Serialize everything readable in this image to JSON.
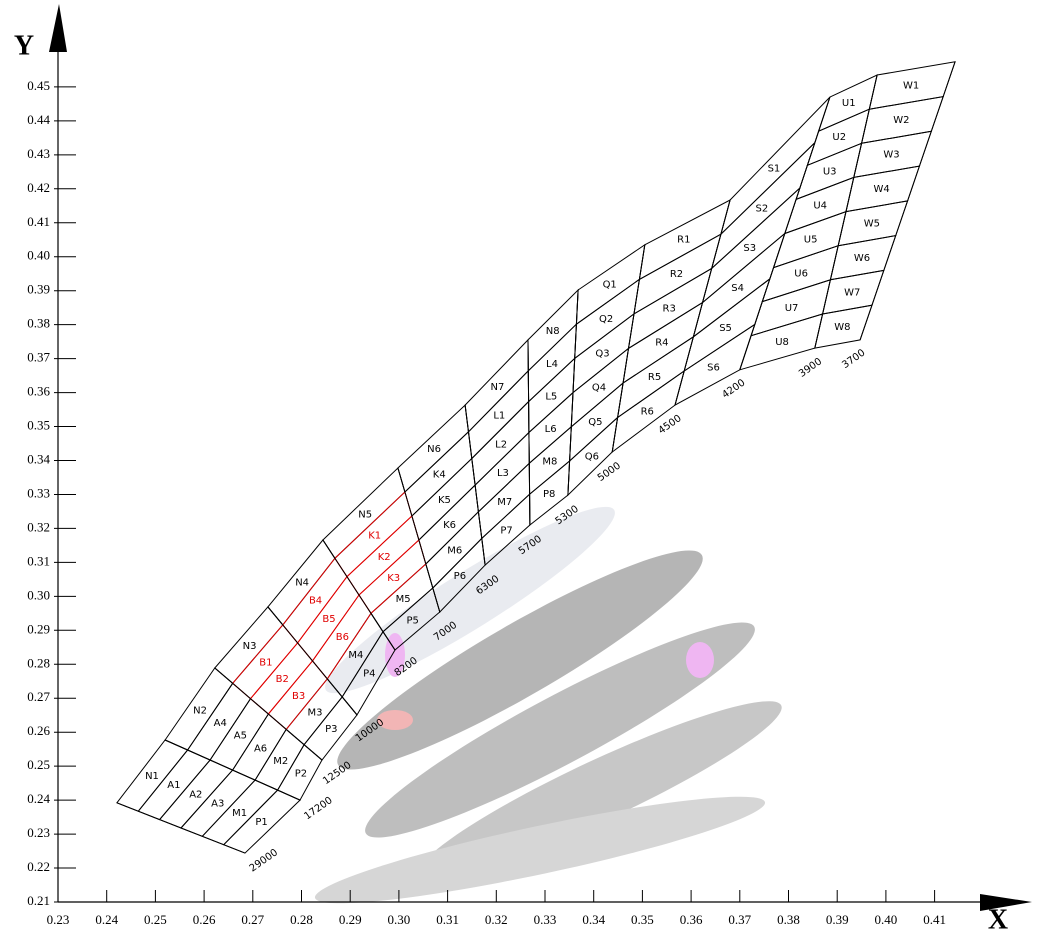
{
  "chart_data": {
    "type": "chromaticity-bins",
    "x_label": "X",
    "y_label": "Y",
    "xlim": [
      0.23,
      0.43
    ],
    "ylim": [
      0.21,
      0.47
    ],
    "xticks": [
      0.23,
      0.24,
      0.25,
      0.26,
      0.27,
      0.28,
      0.29,
      {
        "value": 0.3,
        "label": "0.30"
      },
      0.31,
      0.32,
      0.33,
      0.34,
      0.35,
      0.36,
      0.37,
      0.38,
      0.39,
      {
        "value": 0.4,
        "label": "0.40"
      },
      0.41
    ],
    "yticks": [
      0.21,
      0.22,
      0.23,
      0.24,
      0.25,
      0.26,
      0.27,
      0.28,
      0.29,
      {
        "value": 0.3,
        "label": "0.30"
      },
      0.31,
      0.32,
      0.33,
      0.34,
      0.35,
      0.36,
      0.37,
      0.38,
      0.39,
      {
        "value": 0.4,
        "label": "0.40"
      },
      0.41,
      0.42,
      0.43,
      0.44,
      0.45
    ],
    "line_color": "#000000",
    "isotherms": [
      {
        "label": "29000",
        "top": [
          0.2421,
          0.2392
        ],
        "bottom": [
          0.2684,
          0.2244
        ]
      },
      {
        "label": "17200",
        "top": [
          0.252,
          0.2577
        ],
        "bottom": [
          0.2797,
          0.24
        ]
      },
      {
        "label": "12500",
        "top": [
          0.2622,
          0.2789
        ],
        "bottom": [
          0.2842,
          0.2518
        ]
      },
      {
        "label": "10000",
        "top": [
          0.2731,
          0.2969
        ],
        "bottom": [
          0.2914,
          0.2651
        ]
      },
      {
        "label": "8200",
        "top": [
          0.2844,
          0.3166
        ],
        "bottom": [
          0.2992,
          0.2842
        ]
      },
      {
        "label": "7000",
        "top": [
          0.2998,
          0.3378
        ],
        "bottom": [
          0.3084,
          0.2954
        ]
      },
      {
        "label": "6300",
        "top": [
          0.3136,
          0.3563
        ],
        "bottom": [
          0.3177,
          0.3092
        ]
      },
      {
        "label": "5700",
        "top": [
          0.3265,
          0.3755
        ],
        "bottom": [
          0.3269,
          0.321
        ]
      },
      {
        "label": "5300",
        "top": [
          0.3368,
          0.3902
        ],
        "bottom": [
          0.3347,
          0.3298
        ]
      },
      {
        "label": "5000",
        "top": [
          0.3505,
          0.4035
        ],
        "bottom": [
          0.3438,
          0.3425
        ]
      },
      {
        "label": "4500",
        "top": [
          0.368,
          0.4167
        ],
        "bottom": [
          0.3567,
          0.3563
        ]
      },
      {
        "label": "4200",
        "top": [
          0.3885,
          0.447
        ],
        "bottom": [
          0.37,
          0.3667
        ]
      },
      {
        "label": "3900",
        "top": [
          0.3982,
          0.4535
        ],
        "bottom": [
          0.3854,
          0.3731
        ]
      },
      {
        "label": "3700",
        "top": [
          0.4142,
          0.4574
        ],
        "bottom": [
          0.3947,
          0.3755
        ]
      }
    ],
    "columns": [
      {
        "labels": [
          "N1",
          "A1",
          "A2",
          "A3",
          "M1",
          "P1"
        ],
        "colors": [
          "#000000",
          "#000000",
          "#000000",
          "#000000",
          "#000000",
          "#000000"
        ]
      },
      {
        "labels": [
          "N2",
          "A4",
          "A5",
          "A6",
          "M2",
          "P2"
        ],
        "colors": [
          "#000000",
          "#000000",
          "#000000",
          "#000000",
          "#000000",
          "#000000"
        ]
      },
      {
        "labels": [
          "N3",
          "B1",
          "B2",
          "B3",
          "M3",
          "P3"
        ],
        "colors": [
          "#000000",
          "#e00000",
          "#e00000",
          "#e00000",
          "#000000",
          "#000000"
        ]
      },
      {
        "labels": [
          "N4",
          "B4",
          "B5",
          "B6",
          "M4",
          "P4"
        ],
        "colors": [
          "#000000",
          "#e00000",
          "#e00000",
          "#e00000",
          "#000000",
          "#000000"
        ]
      },
      {
        "labels": [
          "N5",
          "K1",
          "K2",
          "K3",
          "M5",
          "P5"
        ],
        "colors": [
          "#000000",
          "#e00000",
          "#e00000",
          "#e00000",
          "#000000",
          "#000000"
        ]
      },
      {
        "labels": [
          "N6",
          "K4",
          "K5",
          "K6",
          "M6",
          "P6"
        ],
        "colors": [
          "#000000",
          "#000000",
          "#000000",
          "#000000",
          "#000000",
          "#000000"
        ]
      },
      {
        "labels": [
          "N7",
          "L1",
          "L2",
          "L3",
          "M7",
          "P7"
        ],
        "colors": [
          "#000000",
          "#000000",
          "#000000",
          "#000000",
          "#000000",
          "#000000"
        ]
      },
      {
        "labels": [
          "N8",
          "L4",
          "L5",
          "L6",
          "M8",
          "P8"
        ],
        "colors": [
          "#000000",
          "#000000",
          "#000000",
          "#000000",
          "#000000",
          "#000000"
        ]
      },
      {
        "labels": [
          "Q1",
          "Q2",
          "Q3",
          "Q4",
          "Q5",
          "Q6"
        ],
        "colors": [
          "#000000",
          "#000000",
          "#000000",
          "#000000",
          "#000000",
          "#000000"
        ]
      },
      {
        "labels": [
          "R1",
          "R2",
          "R3",
          "R4",
          "R5",
          "R6"
        ],
        "colors": [
          "#000000",
          "#000000",
          "#000000",
          "#000000",
          "#000000",
          "#000000"
        ]
      },
      {
        "labels": [
          "S1",
          "S2",
          "S3",
          "S4",
          "S5",
          "S6"
        ],
        "colors": [
          "#000000",
          "#000000",
          "#000000",
          "#000000",
          "#000000",
          "#000000"
        ]
      },
      {
        "labels": [
          "U1",
          "U2",
          "U3",
          "U4",
          "U5",
          "U6",
          "U7",
          "U8"
        ],
        "colors": [
          "#000000",
          "#000000",
          "#000000",
          "#000000",
          "#000000",
          "#000000",
          "#000000",
          "#000000"
        ]
      },
      {
        "labels": [
          "W1",
          "W2",
          "W3",
          "W4",
          "W5",
          "W6",
          "W7",
          "W8"
        ],
        "colors": [
          "#000000",
          "#000000",
          "#000000",
          "#000000",
          "#000000",
          "#000000",
          "#000000",
          "#000000"
        ]
      }
    ]
  }
}
